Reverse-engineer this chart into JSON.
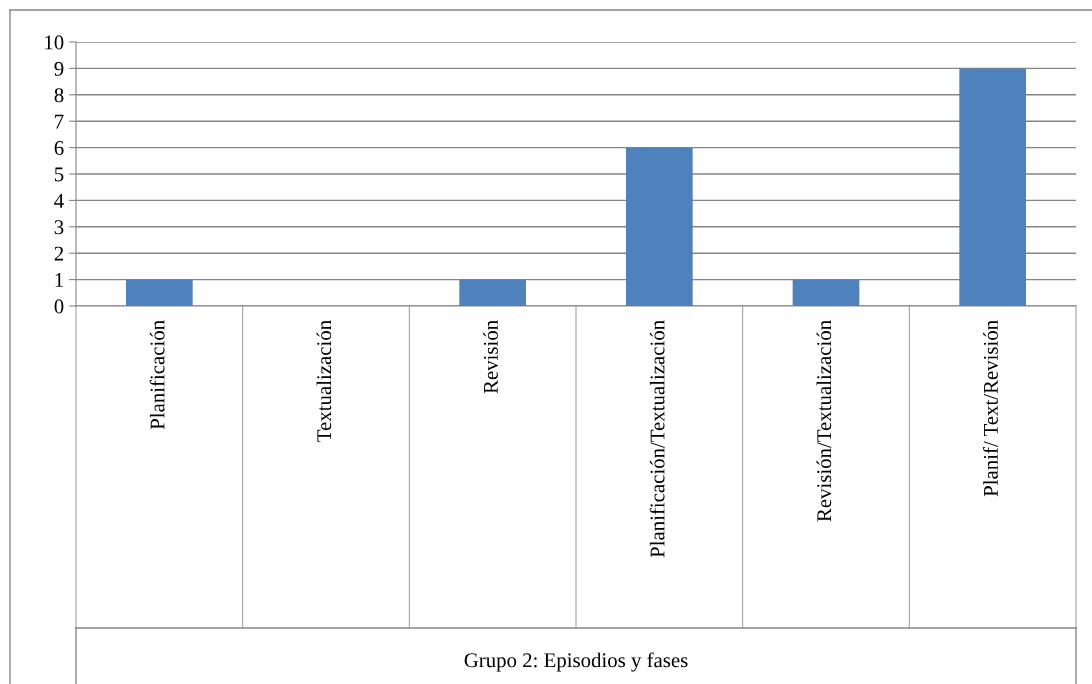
{
  "chart_data": {
    "type": "bar",
    "xlabel": "Grupo 2: Episodios y fases",
    "categories": [
      "Planificación",
      "Textualización",
      "Revisión",
      "Planificación/Textualización",
      "Revisión/Textualización",
      "Planif/ Text/Revisión"
    ],
    "values": [
      1,
      0,
      1,
      6,
      1,
      9
    ],
    "color": "#4f81bd",
    "ylim": [
      0,
      10
    ],
    "yticks": [
      0,
      1,
      2,
      3,
      4,
      5,
      6,
      7,
      8,
      9,
      10
    ],
    "grid": "y"
  }
}
